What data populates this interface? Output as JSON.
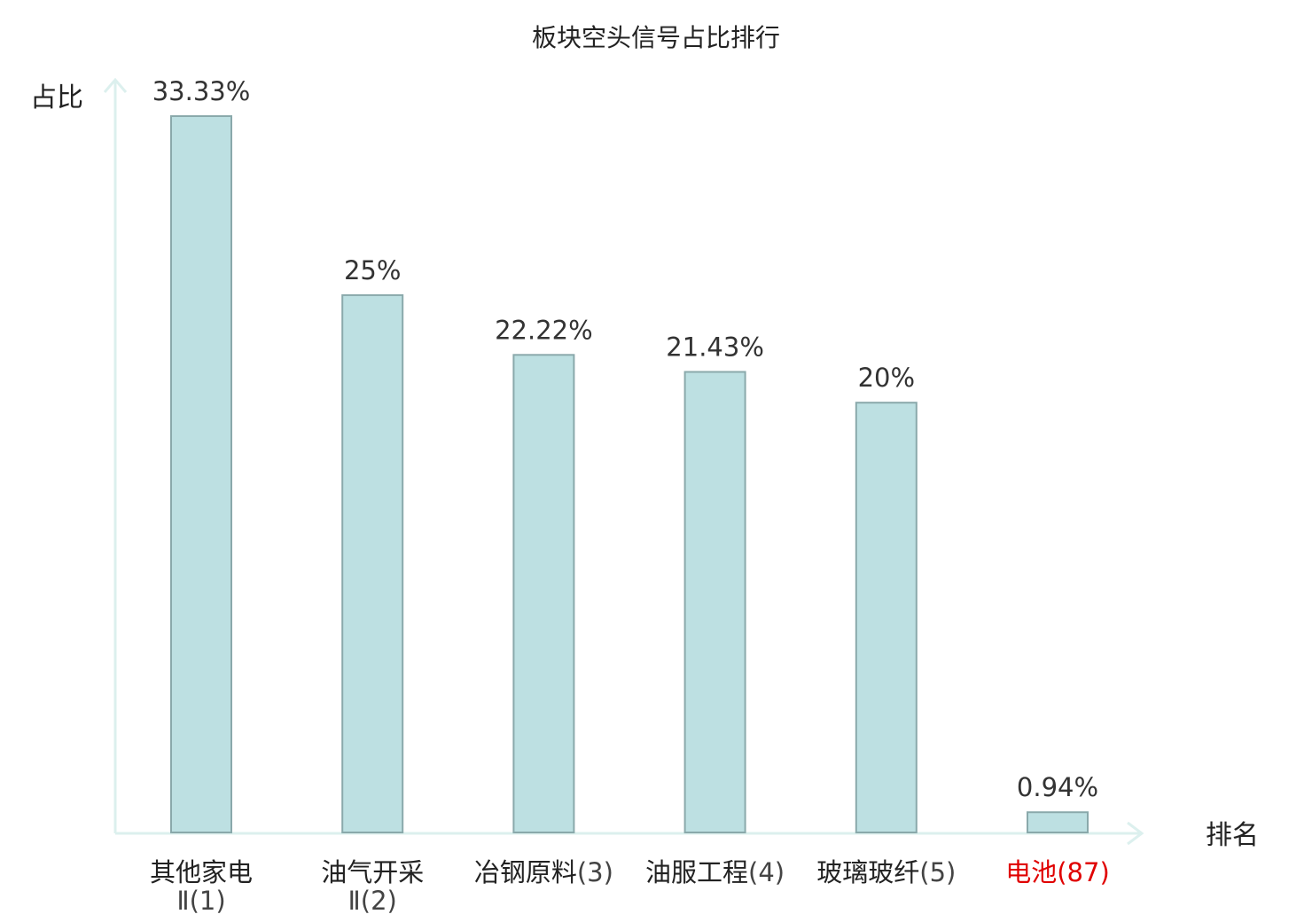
{
  "chart_data": {
    "type": "bar",
    "title": "板块空头信号占比排行",
    "ylabel": "占比",
    "xlabel": "排名",
    "ylim": [
      0,
      33.33
    ],
    "categories": [
      {
        "line1": "其他家电",
        "line2": "Ⅱ(1)",
        "highlight": false
      },
      {
        "line1": "油气开采",
        "line2": "Ⅱ(2)",
        "highlight": false
      },
      {
        "line1": "冶钢原料",
        "line2": "(3)",
        "highlight": false
      },
      {
        "line1": "油服工程",
        "line2": "(4)",
        "highlight": false
      },
      {
        "line1": "玻璃玻纤",
        "line2": "(5)",
        "highlight": false
      },
      {
        "line1": "电池",
        "line2": "(87)",
        "highlight": true
      }
    ],
    "values": [
      33.33,
      25,
      22.22,
      21.43,
      20,
      0.94
    ],
    "value_labels": [
      "33.33%",
      "25%",
      "22.22%",
      "21.43%",
      "20%",
      "0.94%"
    ],
    "grid": false,
    "legend": "none"
  },
  "colors": {
    "bar_fill": "#bde0e2",
    "bar_stroke": "#8aa9ab",
    "axis": "#dcf0ee",
    "highlight_text": "#e00000",
    "text": "#222222"
  }
}
